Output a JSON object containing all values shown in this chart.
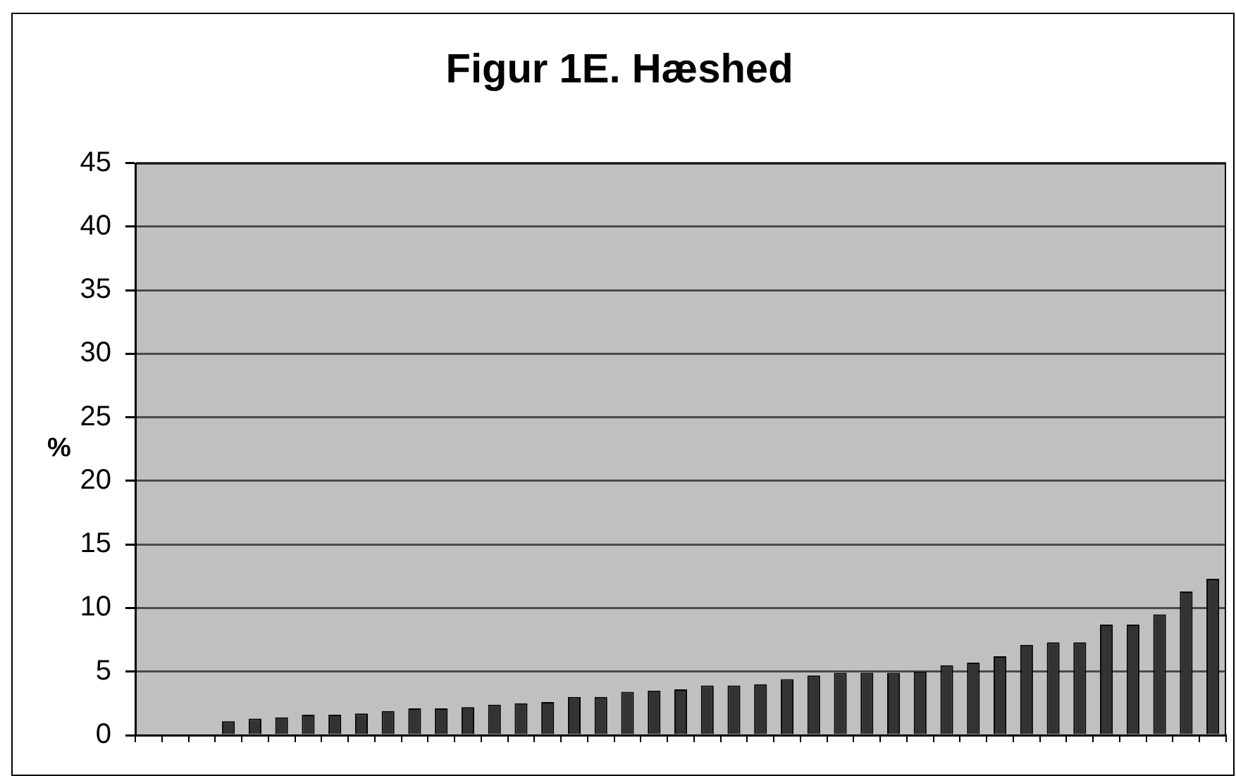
{
  "chart_data": {
    "type": "bar",
    "title": "Figur 1E. Hæshed",
    "ylabel": "%",
    "categories": [
      null,
      null,
      null,
      null,
      null,
      null,
      null,
      null,
      null,
      null,
      null,
      null,
      null,
      null,
      null,
      null,
      null,
      null,
      null,
      null,
      null,
      null,
      null,
      null,
      null,
      null,
      null,
      null,
      null,
      null,
      null,
      null,
      null,
      null,
      null,
      null,
      null,
      null,
      null,
      null,
      null
    ],
    "values": [
      0,
      0,
      0,
      1.1,
      1.3,
      1.4,
      1.6,
      1.6,
      1.7,
      1.9,
      2.1,
      2.1,
      2.2,
      2.4,
      2.5,
      2.6,
      3.0,
      3.0,
      3.4,
      3.5,
      3.6,
      3.9,
      3.9,
      4.0,
      4.4,
      4.7,
      4.9,
      4.9,
      4.9,
      5.0,
      5.5,
      5.7,
      6.2,
      7.1,
      7.3,
      7.3,
      8.7,
      8.7,
      9.5,
      11.3,
      12.3
    ],
    "color": "#333333",
    "ylim": [
      0,
      45
    ],
    "yticks": [
      0,
      5,
      10,
      15,
      20,
      25,
      30,
      35,
      40,
      45
    ],
    "grid": "y"
  }
}
